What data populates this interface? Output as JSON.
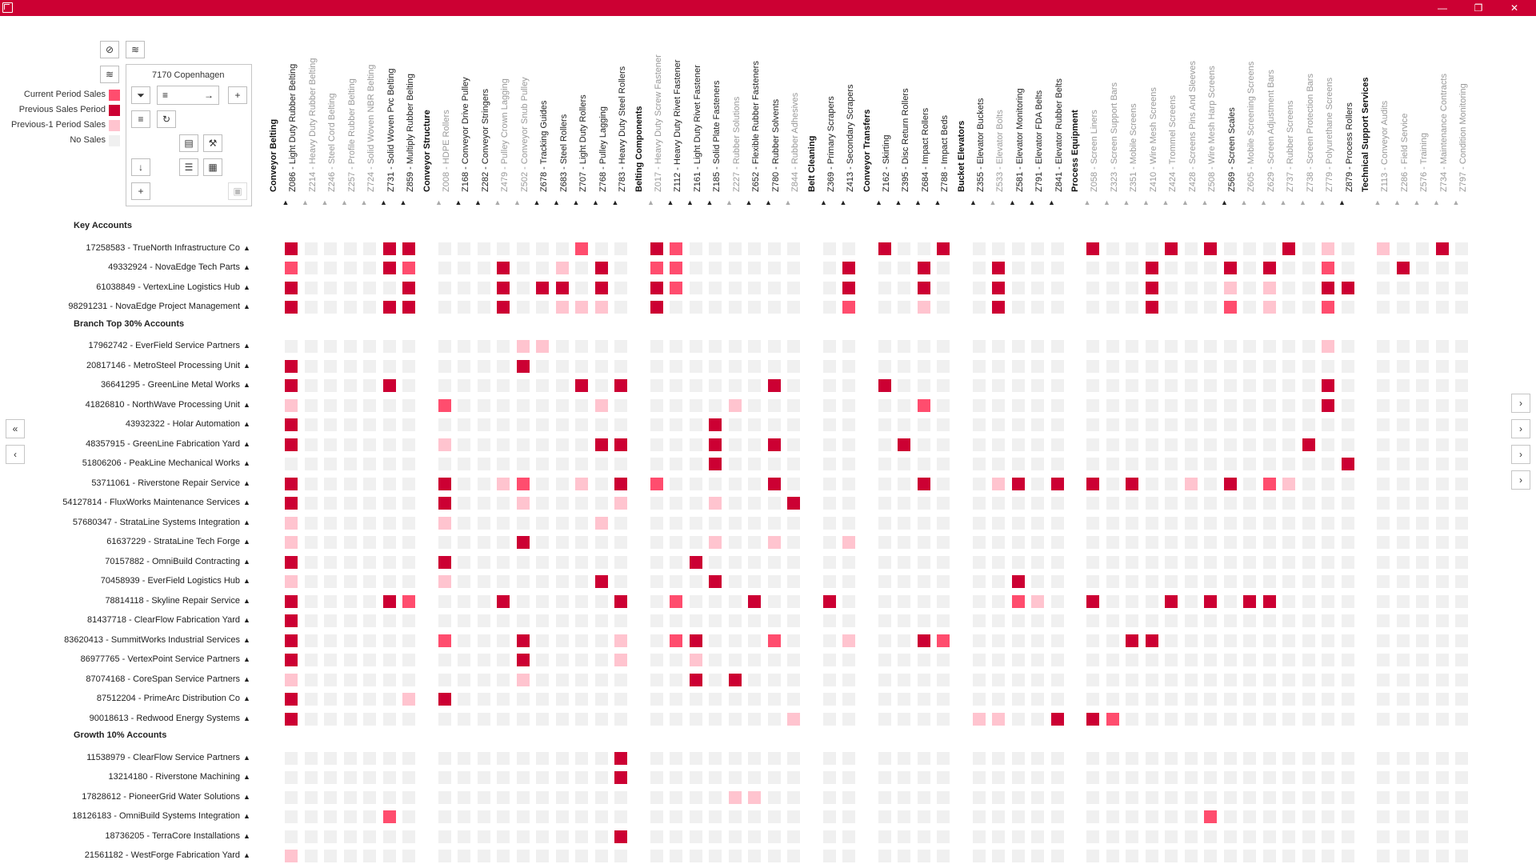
{
  "window": {
    "min_glyph": "—",
    "max_glyph": "❐",
    "close_glyph": "✕"
  },
  "panel": {
    "title": "7170 Copenhagen"
  },
  "legend": [
    {
      "label": "Current Period Sales",
      "color": "#ff4d6e"
    },
    {
      "label": "Previous Sales Period",
      "color": "#cc0033"
    },
    {
      "label": "Previous-1 Period Sales",
      "color": "#ffc4cf"
    },
    {
      "label": "No Sales",
      "color": "#f0f0f0"
    }
  ],
  "columns": [
    {
      "label": "Conveyor Belting",
      "section": true
    },
    {
      "label": "Z086 - Light Duty Rubber Belting",
      "on": true
    },
    {
      "label": "Z214 - Heavy Duty Rubber Belting",
      "on": false
    },
    {
      "label": "Z246 - Steel Cord Belting",
      "on": false
    },
    {
      "label": "Z257 - Profile Rubber Belting",
      "on": false
    },
    {
      "label": "Z724 - Solid Woven NBR Belting",
      "on": false
    },
    {
      "label": "Z731 - Solid Woven Pvc Belting",
      "on": true
    },
    {
      "label": "Z859 - Multiply Rubber Belting",
      "on": true
    },
    {
      "label": "Conveyor Structure",
      "section": true
    },
    {
      "label": "Z008 - HDPE Rollers",
      "on": false
    },
    {
      "label": "Z168 - Conveyor Drive Pulley",
      "on": true
    },
    {
      "label": "Z282 - Conveyor Stringers",
      "on": true
    },
    {
      "label": "Z479 - Pulley Crown Lagging",
      "on": false
    },
    {
      "label": "Z502 - Conveyor Snub Pulley",
      "on": false
    },
    {
      "label": "Z678 - Tracking Guides",
      "on": true
    },
    {
      "label": "Z683 - Steel Rollers",
      "on": true
    },
    {
      "label": "Z707 - Light Duty Rollers",
      "on": true
    },
    {
      "label": "Z768 - Pulley Lagging",
      "on": true
    },
    {
      "label": "Z783 - Heavy Duty Steel Rollers",
      "on": true
    },
    {
      "label": "Belting Components",
      "section": true
    },
    {
      "label": "Z017 - Heavy Duty Screw Fastener",
      "on": false
    },
    {
      "label": "Z112 - Heavy Duty Rivet Fastener",
      "on": true
    },
    {
      "label": "Z161 - Light Duty Rivet Fastener",
      "on": true
    },
    {
      "label": "Z185 - Solid Plate Fasteners",
      "on": true
    },
    {
      "label": "Z227 - Rubber Solutions",
      "on": false
    },
    {
      "label": "Z652 - Flexible Rubber Fasteners",
      "on": true
    },
    {
      "label": "Z780 - Rubber Solvents",
      "on": true
    },
    {
      "label": "Z844 - Rubber Adhesives",
      "on": false
    },
    {
      "label": "Belt Cleaning",
      "section": true
    },
    {
      "label": "Z369 - Primary Scrapers",
      "on": true
    },
    {
      "label": "Z413 - Secondary Scrapers",
      "on": true
    },
    {
      "label": "Conveyor Transfers",
      "section": true
    },
    {
      "label": "Z162 - Skirting",
      "on": true
    },
    {
      "label": "Z395 - Disc Return Rollers",
      "on": true
    },
    {
      "label": "Z684 - Impact Rollers",
      "on": true
    },
    {
      "label": "Z788 - Impact Beds",
      "on": true
    },
    {
      "label": "Bucket Elevators",
      "section": true
    },
    {
      "label": "Z355 - Elevator Buckets",
      "on": true
    },
    {
      "label": "Z533 - Elevator Bolts",
      "on": false
    },
    {
      "label": "Z581 - Elevator Monitoring",
      "on": true
    },
    {
      "label": "Z791 - Elevator FDA Belts",
      "on": true
    },
    {
      "label": "Z841 - Elevator Rubber Belts",
      "on": true
    },
    {
      "label": "Process Equipment",
      "section": true
    },
    {
      "label": "Z058 - Screen Liners",
      "on": false
    },
    {
      "label": "Z323 - Screen Support Bars",
      "on": false
    },
    {
      "label": "Z351 - Mobile Screens",
      "on": false
    },
    {
      "label": "Z410 - Wire Mesh Screens",
      "on": false
    },
    {
      "label": "Z424 - Trommel Screens",
      "on": false
    },
    {
      "label": "Z428 - Screens Pins And Sleeves",
      "on": false
    },
    {
      "label": "Z508 - Wire Mesh Harp Screens",
      "on": false
    },
    {
      "label": "Z569 - Screen Scales",
      "on": true
    },
    {
      "label": "Z605 - Mobile Screening Screens",
      "on": false
    },
    {
      "label": "Z629 - Screen Adjustment Bars",
      "on": false
    },
    {
      "label": "Z737 - Rubber Screens",
      "on": false
    },
    {
      "label": "Z738 - Screen Protection Bars",
      "on": false
    },
    {
      "label": "Z779 - Polyurethane Screens",
      "on": false
    },
    {
      "label": "Z879 - Process Rollers",
      "on": true
    },
    {
      "label": "Technical Support Services",
      "section": true
    },
    {
      "label": "Z113 - Conveyor Audits",
      "on": false
    },
    {
      "label": "Z286 - Field Service",
      "on": false
    },
    {
      "label": "Z576 - Training",
      "on": false
    },
    {
      "label": "Z734 - Maintenance Contracts",
      "on": false
    },
    {
      "label": "Z797 - Condition Monitoring",
      "on": false
    }
  ],
  "groups": [
    {
      "label": "Key Accounts",
      "rows": [
        {
          "label": "17258583 - TrueNorth Infrastructure Co",
          "cells": "1....11.......2..12........1..1.....1...1.1...1.3.3..1..1.........................2"
        },
        {
          "label": "49332924 - NovaEdge Tech Parts",
          "cells": "2....12...1..3.1.22.......1..1..1......1...1.1..2..1.............2..........1"
        },
        {
          "label": "61038849 - VertexLine Logistics Hub",
          "cells": "1.....1...1.11.1.12.......1..1..1......1...3.3..11.......1..11"
        },
        {
          "label": "98291231 - NovaEdge Project Management",
          "cells": "1....11...1..333.1........2..3..1......1...2.3..2"
        }
      ]
    },
    {
      "label": "Branch Top 30% Accounts",
      "rows": [
        {
          "label": "17962742 - EverField Service Partners",
          "cells": "...........33...................................3"
        },
        {
          "label": "20817146 - MetroSteel Processing Unit",
          "cells": "1..........1"
        },
        {
          "label": "36641295 - GreenLine Metal Works",
          "cells": "1....1........1.1......1...1....................1"
        },
        {
          "label": "41826810 - NorthWave Processing Unit",
          "cells": "3......2.......3.....3.......2..................1"
        },
        {
          "label": "43932322 - Holar Automation",
          "cells": "1...................1"
        },
        {
          "label": "48357915 - GreenLine Fabrication Yard",
          "cells": "1......3.......11...1..1....1..................1........1"
        },
        {
          "label": "51806206 - PeakLine Mechanical Works",
          "cells": "....................1............................1"
        },
        {
          "label": "53711061 - Riverstone Repair Service",
          "cells": "1......1..32..3.12.....1.....1..31.11.1..3.1.23"
        },
        {
          "label": "54127814 - FluxWorks Maintenance Services",
          "cells": "1......1...3....3...3...1"
        },
        {
          "label": "57680347 - StrataLine Systems Integration",
          "cells": "3......3.......3"
        },
        {
          "label": "61637229 - StrataLine Tech Forge",
          "cells": "3..........1........3..3..3"
        },
        {
          "label": "70157882 - OmniBuild Contracting",
          "cells": "1......1...........1"
        },
        {
          "label": "70458939 - EverField Logistics Hub",
          "cells": "3......3.......1....1............1"
        },
        {
          "label": "78814118 - Skyline Repair Service",
          "cells": "1....12...1.....1.2...1..1.......23.1...1.1.11"
        },
        {
          "label": "81437718 - ClearFlow Fabrication Yard",
          "cells": "1"
        },
        {
          "label": "83620413 - SummitWorks Industrial Services",
          "cells": "1......2...1....3.21...2..3..12.......11"
        },
        {
          "label": "86977765 - VertexPoint Service Partners",
          "cells": "1..........1....3..3"
        },
        {
          "label": "87074168 - CoreSpan Service Partners",
          "cells": "3..........3.......1.1"
        },
        {
          "label": "87512204 - PrimeArc Distribution Co",
          "cells": "1.....31"
        },
        {
          "label": "90018613 - Redwood Energy Systems",
          "cells": "1.......................3......33..112"
        }
      ]
    },
    {
      "label": "Growth 10% Accounts",
      "rows": [
        {
          "label": "11538979 - ClearFlow Service Partners",
          "cells": "................1"
        },
        {
          "label": "13214180 - Riverstone Machining",
          "cells": "................1"
        },
        {
          "label": "17828612 - PioneerGrid Water Solutions",
          "cells": ".....................33"
        },
        {
          "label": "18126183 - OmniBuild Systems Integration",
          "cells": ".....2....................................2"
        },
        {
          "label": "18736205 - TerraCore Installations",
          "cells": "................1"
        },
        {
          "label": "21561182 - WestForge Fabrication Yard",
          "cells": "3"
        }
      ]
    }
  ]
}
